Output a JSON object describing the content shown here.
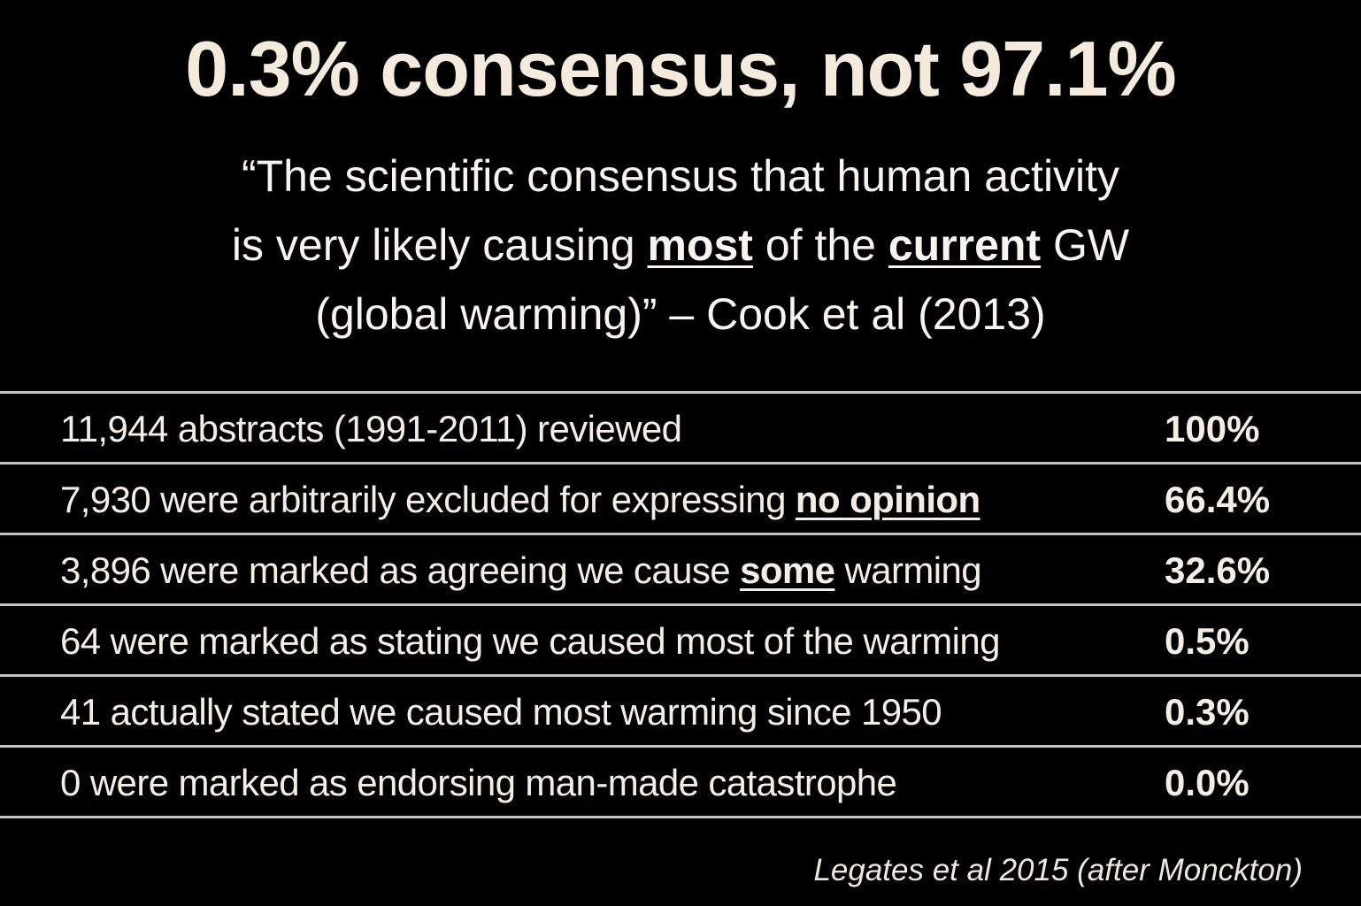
{
  "slide": {
    "title": "0.3% consensus, not 97.1%",
    "quote": {
      "line1": "“The scientific consensus that human activity",
      "line2_before": "is very likely causing ",
      "line2_emph1": "most",
      "line2_mid": " of the ",
      "line2_emph2": "current",
      "line2_after": " GW",
      "line3": "(global warming)” – Cook et al (2013)"
    },
    "rows": [
      {
        "label": "11,944 abstracts (1991-2011) reviewed",
        "percent": "100%"
      },
      {
        "label_before": "7,930 were arbitrarily excluded for expressing ",
        "label_emph": "no opinion",
        "label_after": "",
        "percent": "66.4%"
      },
      {
        "label_before": "3,896 were marked as agreeing we cause ",
        "label_emph": "some",
        "label_after": " warming",
        "percent": "32.6%"
      },
      {
        "label": "64 were marked as stating we caused most of the warming",
        "percent": "0.5%"
      },
      {
        "label": "41 actually stated we caused most warming since 1950",
        "percent": "0.3%"
      },
      {
        "label": "0 were marked as endorsing man-made catastrophe",
        "percent": "0.0%"
      }
    ],
    "source": "Legates et al 2015 (after Monckton)"
  }
}
